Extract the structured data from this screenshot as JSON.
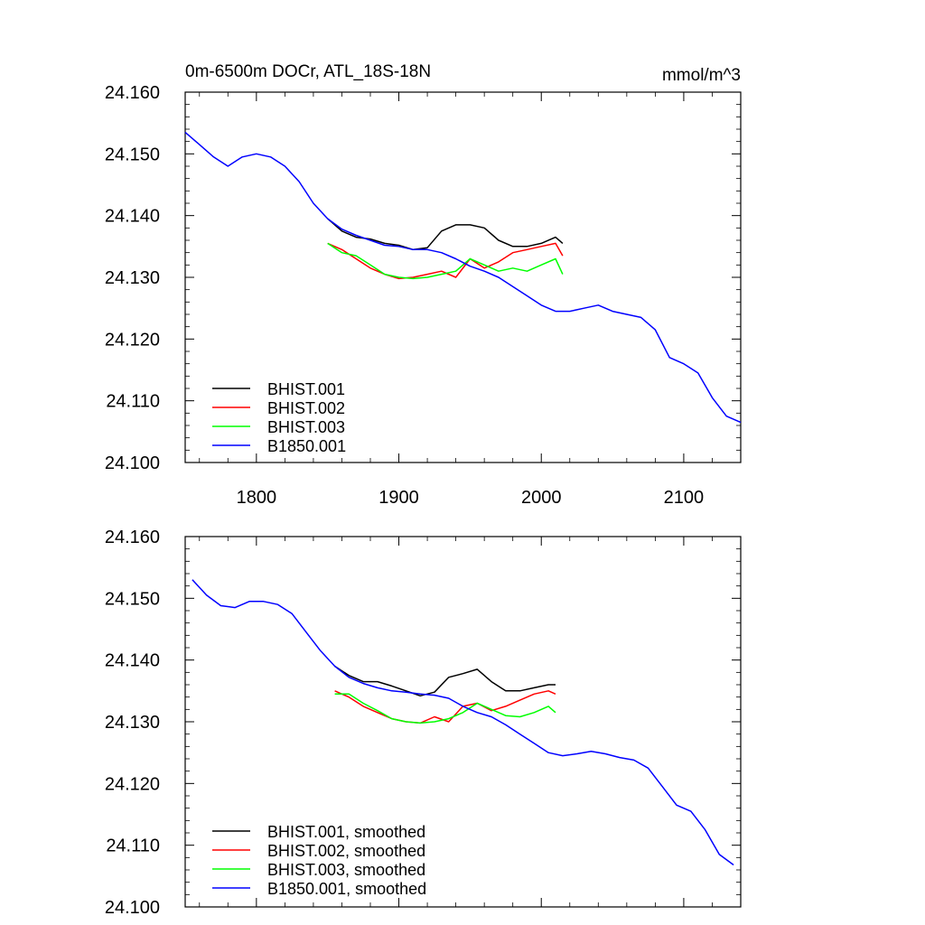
{
  "chart_data": [
    {
      "type": "line",
      "title": "0m-6500m DOCr, ATL_18S-18N",
      "units": "mmol/m^3",
      "xlim": [
        1750,
        2140
      ],
      "ylim": [
        24.1,
        24.16
      ],
      "xticks": [
        1800,
        1900,
        2000,
        2100
      ],
      "yticks": [
        24.1,
        24.11,
        24.12,
        24.13,
        24.14,
        24.15,
        24.16
      ],
      "ytick_labels": [
        "24.100",
        "24.110",
        "24.120",
        "24.130",
        "24.140",
        "24.150",
        "24.160"
      ],
      "xtick_labels": [
        "1800",
        "1900",
        "2000",
        "2100"
      ],
      "legend_position": "bottom-left",
      "series": [
        {
          "name": "BHIST.001",
          "color": "#000000",
          "x": [
            1850,
            1860,
            1870,
            1880,
            1890,
            1900,
            1910,
            1920,
            1930,
            1940,
            1950,
            1960,
            1970,
            1980,
            1990,
            2000,
            2010,
            2015
          ],
          "y": [
            24.1395,
            24.1375,
            24.1365,
            24.1362,
            24.1355,
            24.1352,
            24.1345,
            24.1348,
            24.1375,
            24.1385,
            24.1385,
            24.138,
            24.136,
            24.135,
            24.135,
            24.1355,
            24.1365,
            24.1355
          ]
        },
        {
          "name": "BHIST.002",
          "color": "#ff0000",
          "x": [
            1850,
            1860,
            1870,
            1880,
            1890,
            1900,
            1910,
            1920,
            1930,
            1940,
            1950,
            1960,
            1970,
            1980,
            1990,
            2000,
            2010,
            2015
          ],
          "y": [
            24.1355,
            24.1345,
            24.133,
            24.1315,
            24.1305,
            24.1298,
            24.13,
            24.1305,
            24.131,
            24.13,
            24.133,
            24.1315,
            24.1325,
            24.134,
            24.1345,
            24.135,
            24.1355,
            24.1335
          ]
        },
        {
          "name": "BHIST.003",
          "color": "#00ff00",
          "x": [
            1850,
            1860,
            1870,
            1880,
            1890,
            1900,
            1910,
            1920,
            1930,
            1940,
            1950,
            1960,
            1970,
            1980,
            1990,
            2000,
            2010,
            2015
          ],
          "y": [
            24.1355,
            24.134,
            24.1335,
            24.132,
            24.1305,
            24.13,
            24.1298,
            24.13,
            24.1305,
            24.131,
            24.133,
            24.132,
            24.131,
            24.1315,
            24.131,
            24.132,
            24.133,
            24.1305
          ]
        },
        {
          "name": "B1850.001",
          "color": "#0000ff",
          "x": [
            1750,
            1760,
            1770,
            1780,
            1790,
            1800,
            1810,
            1820,
            1830,
            1840,
            1850,
            1860,
            1870,
            1880,
            1890,
            1900,
            1910,
            1920,
            1930,
            1940,
            1950,
            1960,
            1970,
            1980,
            1990,
            2000,
            2010,
            2020,
            2030,
            2040,
            2050,
            2060,
            2070,
            2080,
            2090,
            2100,
            2110,
            2120,
            2130,
            2140
          ],
          "y": [
            24.1535,
            24.1515,
            24.1495,
            24.148,
            24.1495,
            24.15,
            24.1495,
            24.148,
            24.1455,
            24.142,
            24.1395,
            24.1378,
            24.1368,
            24.136,
            24.1352,
            24.135,
            24.1345,
            24.1345,
            24.134,
            24.133,
            24.1318,
            24.131,
            24.13,
            24.1285,
            24.127,
            24.1255,
            24.1245,
            24.1245,
            24.125,
            24.1255,
            24.1245,
            24.124,
            24.1235,
            24.1215,
            24.117,
            24.116,
            24.1145,
            24.1105,
            24.1075,
            24.1065
          ]
        }
      ]
    },
    {
      "type": "line",
      "title": "",
      "xlim": [
        1750,
        2140
      ],
      "ylim": [
        24.1,
        24.16
      ],
      "xticks": [
        1800,
        1900,
        2000,
        2100
      ],
      "yticks": [
        24.1,
        24.11,
        24.12,
        24.13,
        24.14,
        24.15,
        24.16
      ],
      "ytick_labels": [
        "24.100",
        "24.110",
        "24.120",
        "24.130",
        "24.140",
        "24.150",
        "24.160"
      ],
      "legend_position": "bottom-left",
      "series": [
        {
          "name": "BHIST.001, smoothed",
          "color": "#000000",
          "x": [
            1855,
            1865,
            1875,
            1885,
            1895,
            1905,
            1915,
            1925,
            1935,
            1945,
            1955,
            1965,
            1975,
            1985,
            1995,
            2005,
            2010
          ],
          "y": [
            24.139,
            24.1375,
            24.1365,
            24.1365,
            24.1358,
            24.135,
            24.1342,
            24.1348,
            24.1372,
            24.1378,
            24.1385,
            24.1365,
            24.135,
            24.135,
            24.1355,
            24.136,
            24.136
          ]
        },
        {
          "name": "BHIST.002, smoothed",
          "color": "#ff0000",
          "x": [
            1855,
            1865,
            1875,
            1885,
            1895,
            1905,
            1915,
            1925,
            1935,
            1945,
            1955,
            1965,
            1975,
            1985,
            1995,
            2005,
            2010
          ],
          "y": [
            24.135,
            24.134,
            24.1325,
            24.1315,
            24.1305,
            24.13,
            24.1298,
            24.1308,
            24.13,
            24.1325,
            24.133,
            24.1318,
            24.1325,
            24.1335,
            24.1345,
            24.135,
            24.1345
          ]
        },
        {
          "name": "BHIST.003, smoothed",
          "color": "#00ff00",
          "x": [
            1855,
            1865,
            1875,
            1885,
            1895,
            1905,
            1915,
            1925,
            1935,
            1945,
            1955,
            1965,
            1975,
            1985,
            1995,
            2005,
            2010
          ],
          "y": [
            24.1345,
            24.1345,
            24.133,
            24.1318,
            24.1305,
            24.13,
            24.1298,
            24.13,
            24.1305,
            24.1315,
            24.133,
            24.132,
            24.131,
            24.1308,
            24.1315,
            24.1325,
            24.1315
          ]
        },
        {
          "name": "B1850.001, smoothed",
          "color": "#0000ff",
          "x": [
            1755,
            1765,
            1775,
            1785,
            1795,
            1805,
            1815,
            1825,
            1835,
            1845,
            1855,
            1865,
            1875,
            1885,
            1895,
            1905,
            1915,
            1925,
            1935,
            1945,
            1955,
            1965,
            1975,
            1985,
            1995,
            2005,
            2015,
            2025,
            2035,
            2045,
            2055,
            2065,
            2075,
            2085,
            2095,
            2105,
            2115,
            2125,
            2135
          ],
          "y": [
            24.153,
            24.1505,
            24.1488,
            24.1485,
            24.1495,
            24.1495,
            24.149,
            24.1475,
            24.1445,
            24.1415,
            24.139,
            24.1372,
            24.1362,
            24.1355,
            24.135,
            24.1348,
            24.1345,
            24.1343,
            24.1338,
            24.1325,
            24.1315,
            24.1308,
            24.1295,
            24.128,
            24.1265,
            24.125,
            24.1245,
            24.1248,
            24.1252,
            24.1248,
            24.1242,
            24.1238,
            24.1225,
            24.1195,
            24.1165,
            24.1155,
            24.1125,
            24.1085,
            24.1068
          ]
        }
      ]
    }
  ]
}
